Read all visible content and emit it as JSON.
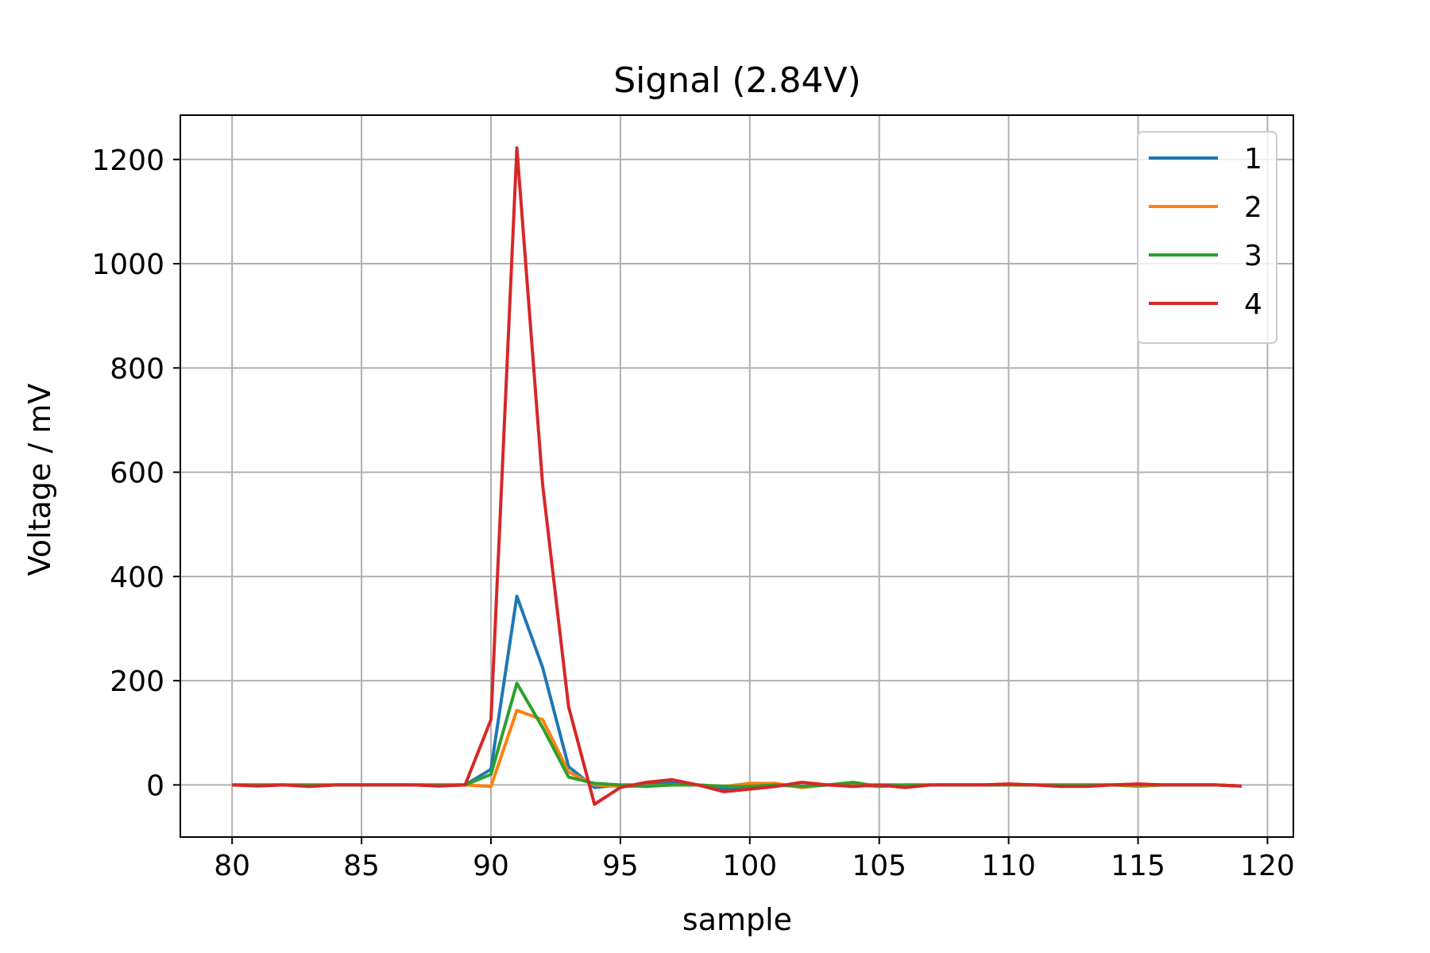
{
  "chart_data": {
    "type": "line",
    "title": "Signal (2.84V)",
    "xlabel": "sample",
    "ylabel": "Voltage / mV",
    "xlim": [
      78,
      121
    ],
    "ylim": [
      -100,
      1285
    ],
    "xticks": [
      80,
      85,
      90,
      95,
      100,
      105,
      110,
      115,
      120
    ],
    "yticks": [
      0,
      200,
      400,
      600,
      800,
      1000,
      1200
    ],
    "grid": true,
    "legend_position": "top-right",
    "x": [
      80,
      81,
      82,
      83,
      84,
      85,
      86,
      87,
      88,
      89,
      90,
      91,
      92,
      93,
      94,
      95,
      96,
      97,
      98,
      99,
      100,
      101,
      102,
      103,
      104,
      105,
      106,
      107,
      108,
      109,
      110,
      111,
      112,
      113,
      114,
      115,
      116,
      117,
      118,
      119
    ],
    "series": [
      {
        "name": "1",
        "color": "#1f77b4",
        "values": [
          0,
          0,
          0,
          -2,
          0,
          0,
          0,
          0,
          0,
          0,
          30,
          362,
          225,
          35,
          -5,
          0,
          0,
          5,
          0,
          -8,
          -3,
          0,
          -3,
          0,
          0,
          0,
          0,
          0,
          0,
          0,
          0,
          0,
          0,
          0,
          0,
          0,
          0,
          0,
          0,
          -2
        ]
      },
      {
        "name": "2",
        "color": "#ff7f0e",
        "values": [
          0,
          0,
          0,
          0,
          0,
          0,
          0,
          0,
          0,
          0,
          -3,
          143,
          125,
          25,
          0,
          -3,
          -2,
          0,
          0,
          -3,
          3,
          3,
          -5,
          0,
          0,
          -3,
          0,
          0,
          0,
          0,
          0,
          0,
          -2,
          0,
          0,
          -3,
          0,
          0,
          0,
          -2
        ]
      },
      {
        "name": "3",
        "color": "#2ca02c",
        "values": [
          0,
          0,
          0,
          0,
          0,
          0,
          0,
          0,
          0,
          0,
          20,
          195,
          110,
          15,
          3,
          0,
          -3,
          0,
          0,
          -3,
          -3,
          0,
          -3,
          0,
          5,
          -3,
          0,
          0,
          0,
          0,
          0,
          0,
          0,
          0,
          0,
          0,
          0,
          0,
          0,
          -2
        ]
      },
      {
        "name": "4",
        "color": "#d62728",
        "values": [
          0,
          -2,
          0,
          -3,
          0,
          0,
          0,
          0,
          -2,
          0,
          125,
          1222,
          575,
          150,
          -37,
          -5,
          5,
          10,
          0,
          -13,
          -8,
          -3,
          5,
          0,
          -3,
          0,
          -5,
          0,
          0,
          0,
          2,
          0,
          -3,
          -3,
          0,
          2,
          0,
          0,
          0,
          -2
        ]
      }
    ]
  }
}
